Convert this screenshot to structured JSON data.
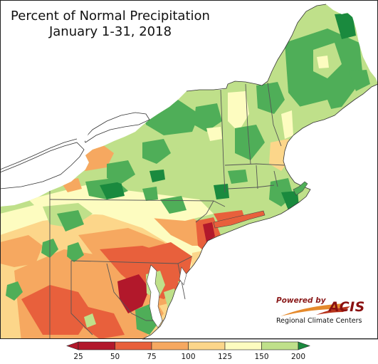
{
  "title": {
    "line1": "Percent of Normal Precipitation",
    "line2": "January 1-31, 2018"
  },
  "brand": {
    "powered_by": "Powered by",
    "name": "ACIS",
    "org": "Regional Climate Centers"
  },
  "legend": {
    "ticks": [
      "25",
      "50",
      "75",
      "100",
      "125",
      "150",
      "200"
    ],
    "colors": [
      "#b2182b",
      "#e8603c",
      "#f6a860",
      "#fcd68a",
      "#fdfcc0",
      "#bfe08a",
      "#4fae58",
      "#1a8a3e"
    ]
  },
  "map_colors": {
    "background": "#ffffff",
    "ocean": "#ffffff",
    "lake": "#ffffff",
    "border": "#555555"
  }
}
